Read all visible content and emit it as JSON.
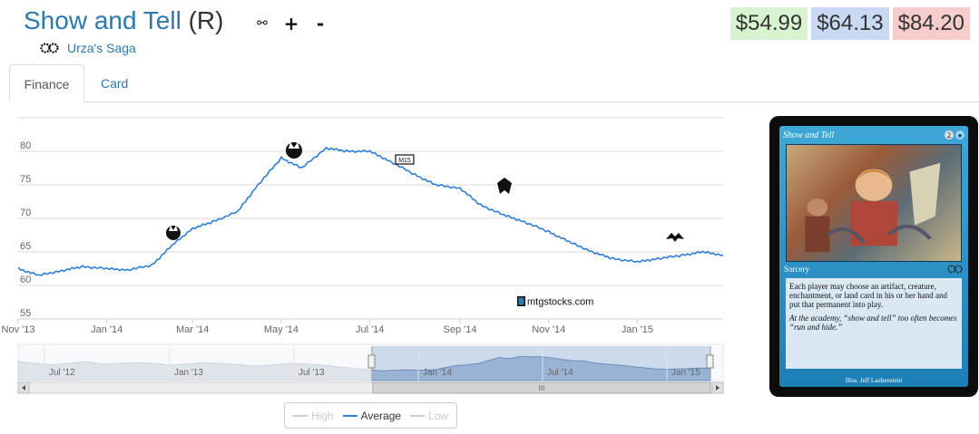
{
  "card": {
    "name": "Show and Tell",
    "rarity": "(R)",
    "set_name": "Urza's Saga",
    "set_icon": "urzas-saga-icon"
  },
  "toolbar": {
    "hide_label": "⚯",
    "add_label": "+",
    "remove_label": "-"
  },
  "prices": {
    "low": "$54.99",
    "avg": "$64.13",
    "high": "$84.20",
    "low_color": "#d7f3cf",
    "avg_color": "#c9d8f3",
    "high_color": "#f6cccc"
  },
  "tabs": [
    {
      "label": "Finance",
      "active": true
    },
    {
      "label": "Card",
      "active": false
    }
  ],
  "watermark": "mtgstocks.com",
  "legend": {
    "high": "High",
    "average": "Average",
    "low": "Low"
  },
  "navigator_labels": [
    "Jul '12",
    "Jan '13",
    "Jul '13",
    "Jan '14",
    "Jul '14",
    "Jan '15"
  ],
  "scrollbar_grip": "III",
  "chart_data": {
    "type": "line",
    "series": [
      {
        "name": "Average",
        "color": "#2f7ed8"
      }
    ],
    "x": [
      "2013-11-01",
      "2013-11-15",
      "2013-12-01",
      "2013-12-15",
      "2014-01-01",
      "2014-01-15",
      "2014-02-01",
      "2014-02-15",
      "2014-03-01",
      "2014-03-15",
      "2014-04-01",
      "2014-04-15",
      "2014-05-01",
      "2014-05-15",
      "2014-06-01",
      "2014-06-15",
      "2014-07-01",
      "2014-07-15",
      "2014-08-01",
      "2014-08-15",
      "2014-09-01",
      "2014-09-15",
      "2014-10-01",
      "2014-10-15",
      "2014-11-01",
      "2014-11-15",
      "2014-12-01",
      "2014-12-15",
      "2015-01-01",
      "2015-01-15",
      "2015-02-01",
      "2015-02-15",
      "2015-03-01"
    ],
    "y": [
      62.5,
      61.5,
      62.2,
      62.8,
      62.5,
      62.3,
      63,
      66,
      68.5,
      69.5,
      71,
      75,
      79,
      77.5,
      80.5,
      80,
      80,
      78.5,
      76.5,
      75,
      74.5,
      72,
      70.5,
      69.5,
      68,
      66.5,
      65,
      64,
      63.5,
      64,
      64.5,
      65,
      64.5
    ],
    "x_ticks": [
      "Nov '13",
      "Jan '14",
      "Mar '14",
      "May '14",
      "Jul '14",
      "Sep '14",
      "Nov '14",
      "Jan '15"
    ],
    "y_ticks": [
      55,
      60,
      65,
      70,
      75,
      80
    ],
    "ylim": [
      55,
      85
    ],
    "xlim": [
      "2013-11-01",
      "2015-03-01"
    ],
    "grid": true,
    "legend_position": "bottom"
  },
  "card_image": {
    "title": "Show and Tell",
    "mana_generic": "2",
    "mana_blue": "●",
    "type_line": "Sorcery",
    "rules_text": "Each player may choose an artifact, creature, enchantment, or land card in his or her hand and put that permanent into play.",
    "flavor_text": "At the academy, “show and tell” too often becomes “run and hide.”",
    "credit": "Illus. Jeff Laubenstein"
  }
}
